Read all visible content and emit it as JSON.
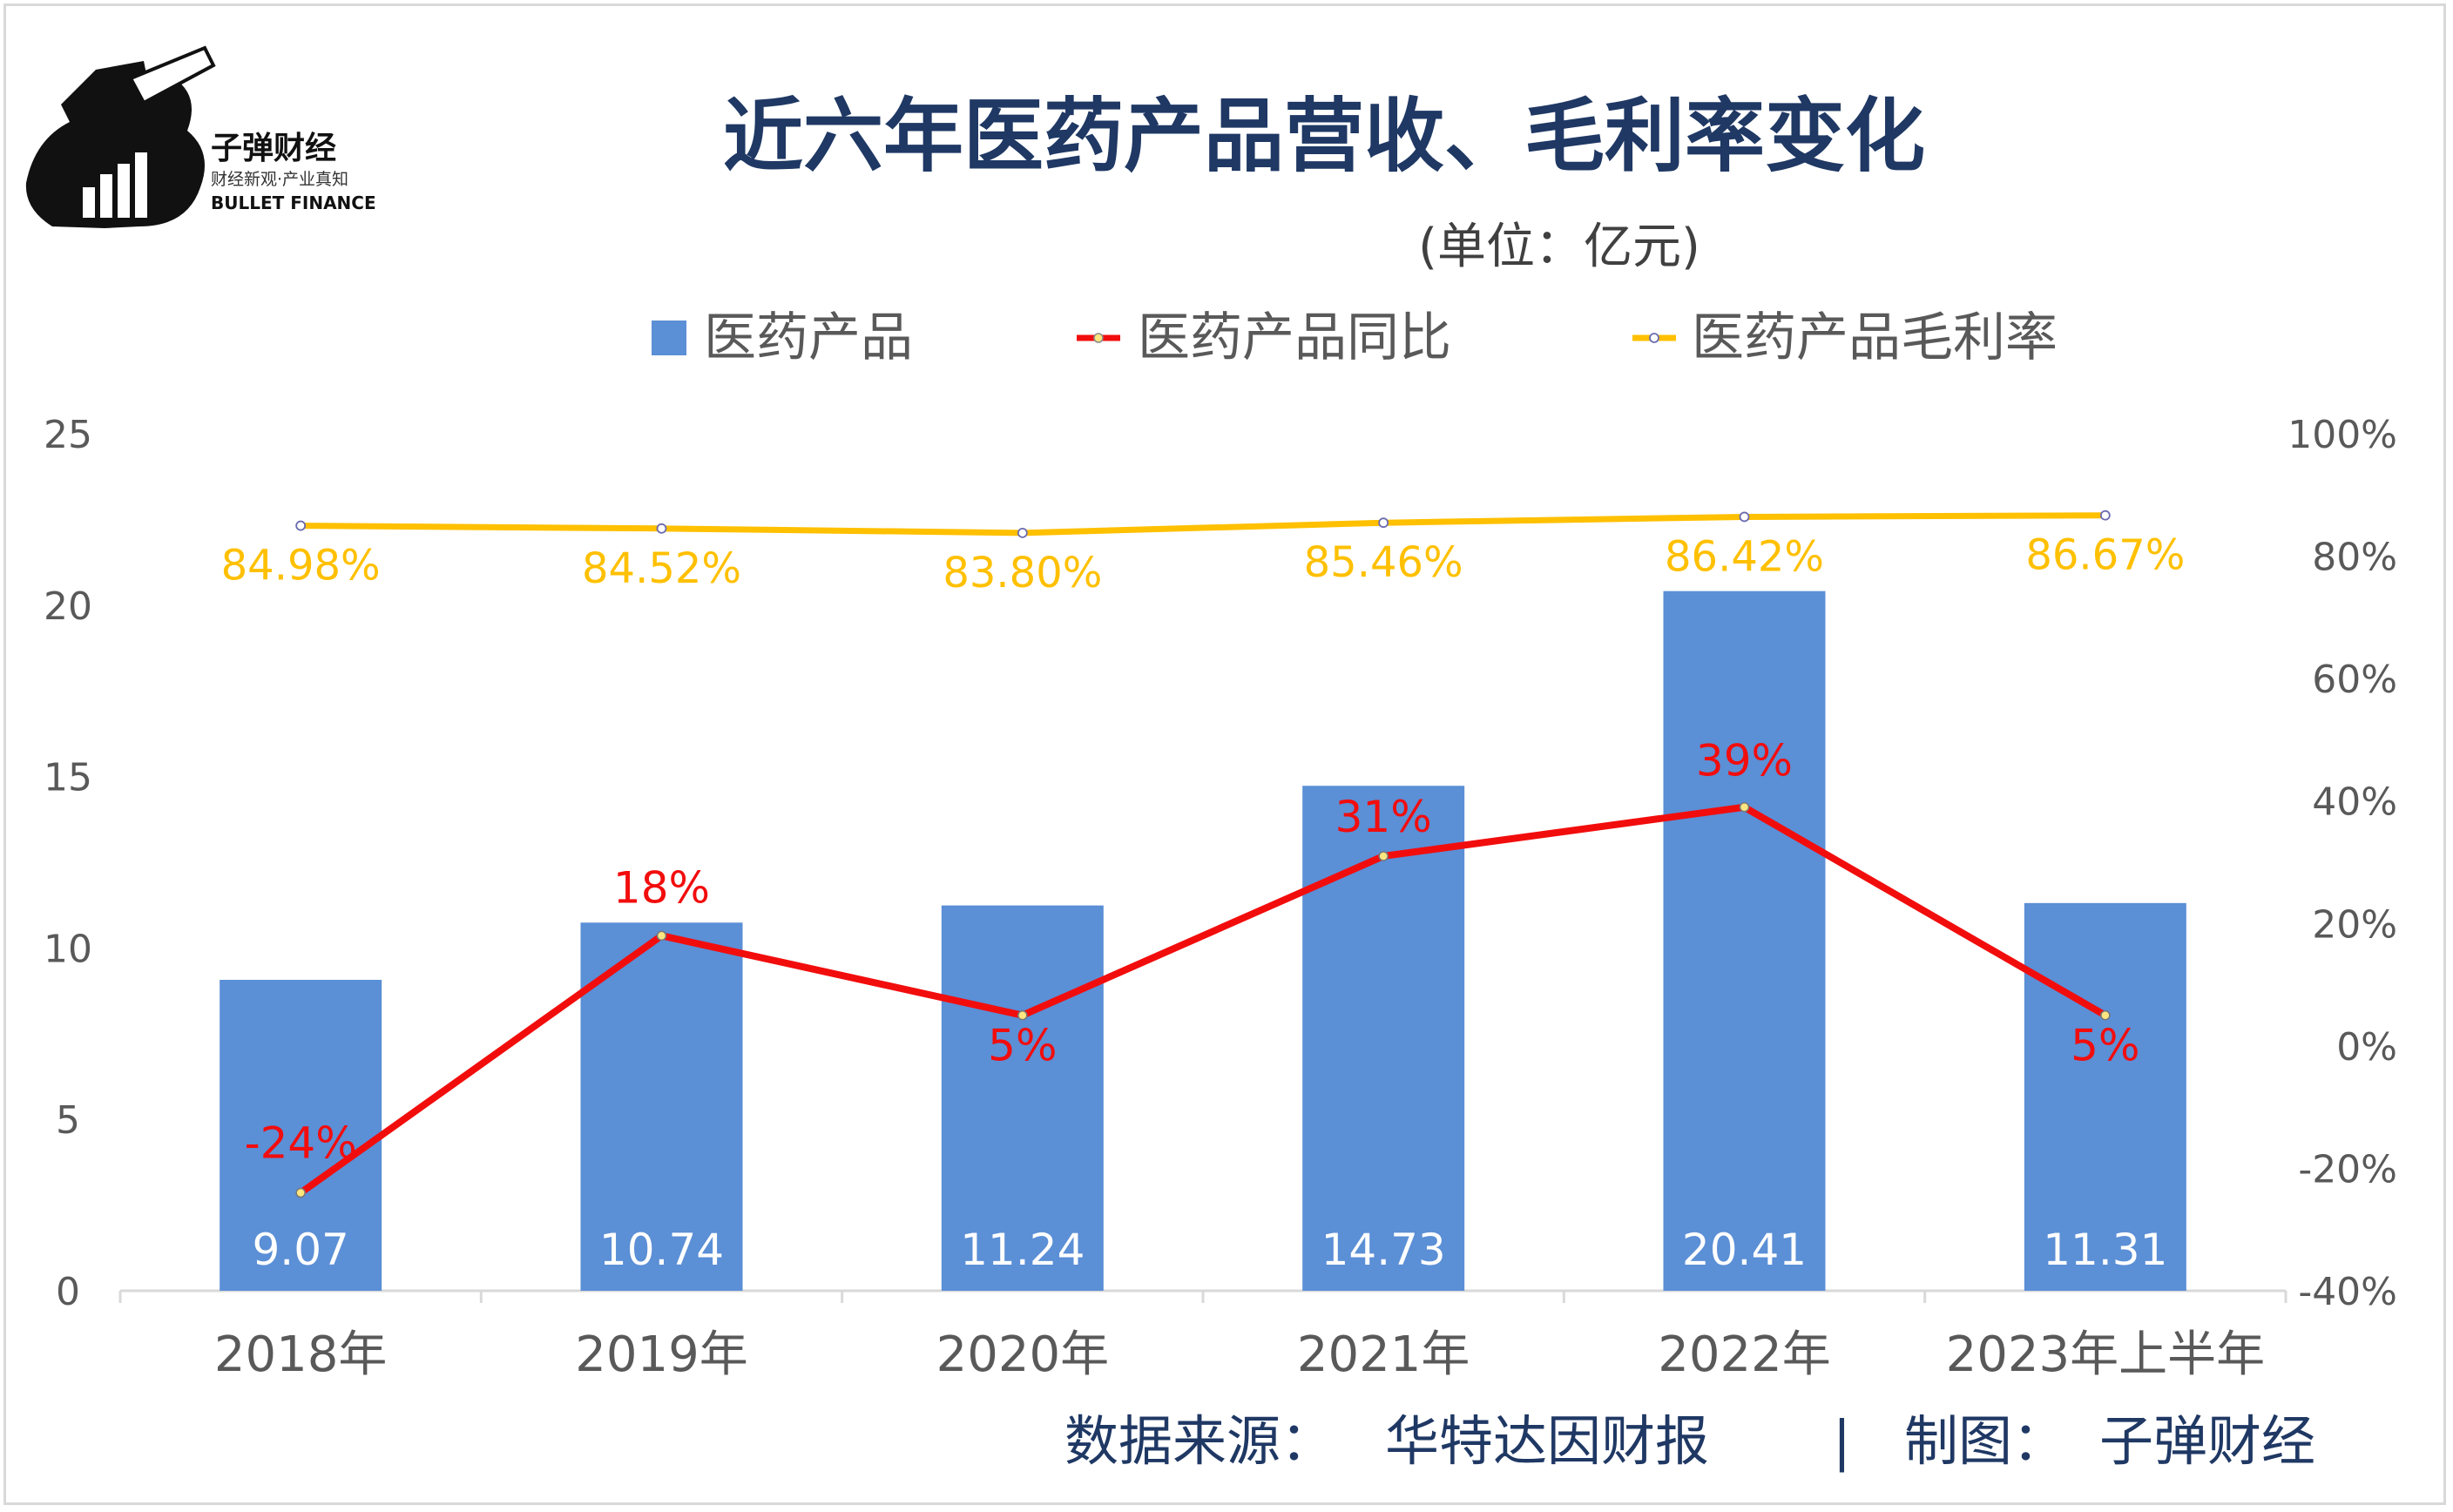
{
  "brand": {
    "name": "子弹财经",
    "slogan": "财经新观·产业真知",
    "english": "BULLET FINANCE"
  },
  "footer": {
    "source_label": "数据来源：",
    "source": "华特达因财报",
    "separator": "|",
    "maker_label": "制图：",
    "maker": "子弹财经"
  },
  "colors": {
    "bar": "#5B8FD6",
    "yoy_line": "#F20D0D",
    "margin_line": "#FFC000",
    "axis_text": "#595959",
    "title": "#1F3864",
    "footer": "#1F3864",
    "bar_label": "#FFFFFF"
  },
  "chart_data": {
    "type": "bar",
    "title": "近六年医药产品营收、毛利率变化",
    "subtitle": "(单位：亿元)",
    "categories": [
      "2018年",
      "2019年",
      "2020年",
      "2021年",
      "2022年",
      "2023年上半年"
    ],
    "series": [
      {
        "name": "医药产品",
        "type": "bar",
        "axis": "left",
        "values": [
          9.07,
          10.74,
          11.24,
          14.73,
          20.41,
          11.31
        ],
        "labels": [
          "9.07",
          "10.74",
          "11.24",
          "14.73",
          "20.41",
          "11.31"
        ]
      },
      {
        "name": "医药产品同比",
        "type": "line",
        "axis": "right",
        "values": [
          -24,
          18,
          5,
          31,
          39,
          5
        ],
        "labels": [
          "-24%",
          "18%",
          "5%",
          "31%",
          "39%",
          "5%"
        ]
      },
      {
        "name": "医药产品毛利率",
        "type": "line",
        "axis": "right",
        "values": [
          84.98,
          84.52,
          83.8,
          85.46,
          86.42,
          86.67
        ],
        "labels": [
          "84.98%",
          "84.52%",
          "83.80%",
          "85.46%",
          "86.42%",
          "86.67%"
        ]
      }
    ],
    "y_left": {
      "min": 0,
      "max": 25,
      "step": 5,
      "ticks": [
        "0",
        "5",
        "10",
        "15",
        "20",
        "25"
      ]
    },
    "y_right": {
      "min": -40,
      "max": 100,
      "step": 20,
      "ticks": [
        "-40%",
        "-20%",
        "0%",
        "20%",
        "40%",
        "60%",
        "80%",
        "100%"
      ]
    },
    "legend": "top-center",
    "grid": false
  }
}
